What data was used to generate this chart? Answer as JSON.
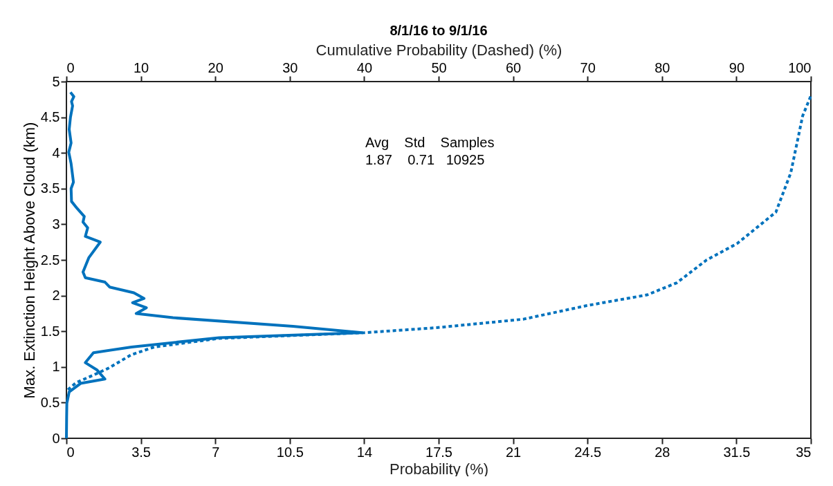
{
  "chart_data": {
    "type": "line",
    "orientation": "horizontal",
    "title": "8/1/16 to 9/1/16",
    "xlabel": "Probability (%)",
    "x2label": "Cumulative Probability (Dashed) (%)",
    "ylabel": "Max. Extinction Height Above Cloud (km)",
    "xlim": [
      0,
      35
    ],
    "xticks": [
      0,
      3.5,
      7,
      10.5,
      14,
      17.5,
      21,
      24.5,
      28,
      31.5,
      35
    ],
    "x2lim": [
      0,
      100
    ],
    "x2ticks": [
      0,
      10,
      20,
      30,
      40,
      50,
      60,
      70,
      80,
      90,
      100
    ],
    "ylim": [
      0,
      5
    ],
    "yticks": [
      0,
      0.5,
      1,
      1.5,
      2,
      2.5,
      3,
      3.5,
      4,
      4.5,
      5
    ],
    "grid": false,
    "marker": "none",
    "annotations": [
      "Avg    Std    Samples",
      "1.87    0.71   10925"
    ],
    "series": [
      {
        "color": "#0072bd",
        "line_style": "solid",
        "x": [
          4.85,
          4.79,
          4.72,
          4.66,
          4.5,
          4.33,
          4.14,
          4.01,
          3.85,
          3.59,
          3.5,
          3.32,
          3.22,
          3.11,
          3.03,
          2.95,
          2.83,
          2.75,
          2.53,
          2.33,
          2.25,
          2.19,
          2.12,
          2.04,
          1.96,
          1.9,
          1.83,
          1.75,
          1.69,
          1.57,
          1.48,
          1.41,
          1.28,
          1.2,
          1.06,
          0.96,
          0.83,
          0.77,
          0.65,
          0.49,
          0.3,
          0
        ],
        "values": [
          0.19,
          0.35,
          0.24,
          0.29,
          0.19,
          0.13,
          0.22,
          0.11,
          0.22,
          0.33,
          0.22,
          0.24,
          0.51,
          0.84,
          0.78,
          1.0,
          0.89,
          1.59,
          1.05,
          0.78,
          0.89,
          1.81,
          2.03,
          3.17,
          3.65,
          3.11,
          3.76,
          3.28,
          5.01,
          10.65,
          13.9,
          7.18,
          3.06,
          1.27,
          0.89,
          1.43,
          1.81,
          0.67,
          0.13,
          0.02,
          0.01,
          0
        ]
      },
      {
        "color": "#0072bd",
        "line_style": "dotted",
        "axis": "x2",
        "x": [
          0.68,
          0.78,
          0.88,
          0.98,
          1.17,
          1.28,
          1.4,
          1.48,
          1.55,
          1.67,
          1.86,
          2.01,
          2.18,
          2.5,
          2.73,
          3.17,
          3.72,
          4.52,
          4.8
        ],
        "values": [
          0.2,
          1.3,
          3.5,
          5.6,
          8.7,
          11.8,
          20.5,
          40,
          49.7,
          61.4,
          69.9,
          78,
          82,
          86,
          90.1,
          95.3,
          97.3,
          98.9,
          100
        ]
      }
    ]
  }
}
